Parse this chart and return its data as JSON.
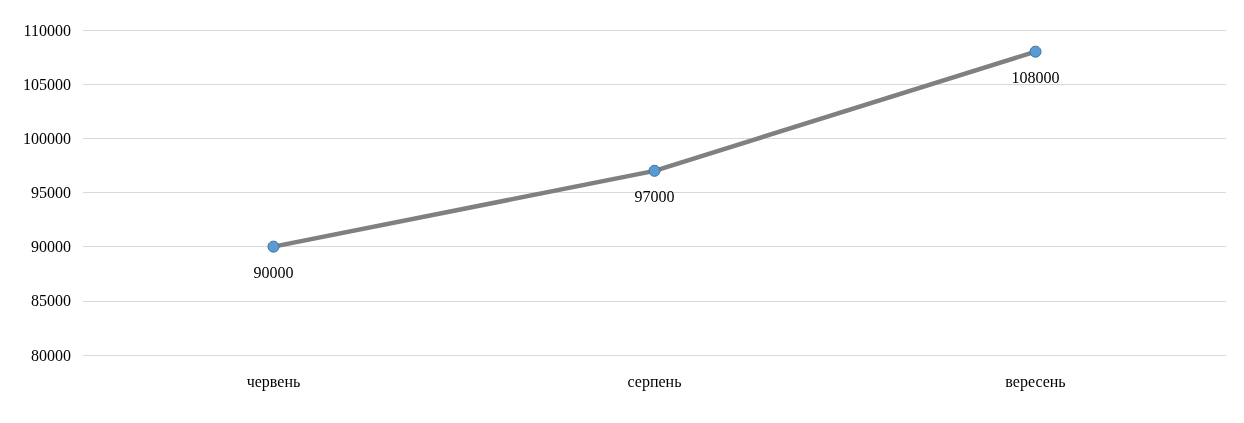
{
  "chart_data": {
    "type": "line",
    "categories": [
      "червень",
      "серпень",
      "вересень"
    ],
    "series": [
      {
        "color": "#808080",
        "colors": [
          "#5b9bd5",
          "#5b9bd5",
          "#5b9bd5"
        ],
        "values": [
          90000,
          97000,
          108000
        ]
      }
    ],
    "ylim": [
      80000,
      110000
    ],
    "yticks": [
      80000,
      85000,
      90000,
      95000,
      100000,
      105000,
      110000
    ],
    "grid": "y",
    "marker": "circle",
    "line_style": "solid",
    "data_labels": true
  }
}
